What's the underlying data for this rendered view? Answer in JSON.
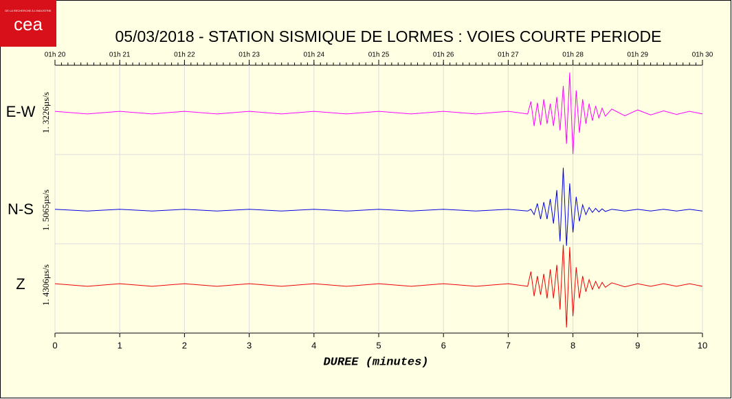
{
  "logo": "cea",
  "logo_tagline": "DE LA RECHERCHE À L'INDUSTRIE",
  "chart_data": {
    "type": "seismogram",
    "title": "05/03/2018  -  STATION SISMIQUE DE LORMES : VOIES COURTE PERIODE",
    "xlabel": "DUREE (minutes)",
    "xlim": [
      0,
      10
    ],
    "xticks": [
      0,
      1,
      2,
      3,
      4,
      5,
      6,
      7,
      8,
      9,
      10
    ],
    "top_ticks": [
      "01h 20",
      "01h 21",
      "01h 22",
      "01h 23",
      "01h 24",
      "01h 25",
      "01h 26",
      "01h 27",
      "01h 28",
      "01h 29",
      "01h 30"
    ],
    "ylim": [
      -1,
      1
    ],
    "grid": true,
    "x": [
      0,
      0.5,
      1,
      1.5,
      2,
      2.5,
      3,
      3.5,
      4,
      4.5,
      5,
      5.5,
      6,
      6.5,
      7,
      7.3,
      7.35,
      7.4,
      7.45,
      7.5,
      7.55,
      7.6,
      7.65,
      7.7,
      7.75,
      7.8,
      7.85,
      7.9,
      7.95,
      8,
      8.05,
      8.1,
      8.15,
      8.2,
      8.25,
      8.3,
      8.35,
      8.4,
      8.45,
      8.5,
      8.6,
      8.8,
      9,
      9.2,
      9.4,
      9.6,
      9.8,
      10
    ],
    "series": [
      {
        "name": "E-W",
        "scale_label": "1. 3226µs/s",
        "color": "#ff00ff",
        "values": [
          0.03,
          -0.03,
          0.03,
          -0.03,
          0.03,
          -0.03,
          0.03,
          -0.03,
          0.03,
          -0.03,
          0.03,
          -0.03,
          0.03,
          -0.03,
          0.03,
          -0.03,
          0.25,
          -0.3,
          0.22,
          -0.28,
          0.3,
          -0.25,
          0.2,
          -0.3,
          0.35,
          -0.4,
          0.6,
          -0.7,
          0.9,
          -0.93,
          0.5,
          -0.45,
          0.3,
          -0.25,
          0.2,
          -0.18,
          0.15,
          -0.12,
          0.1,
          -0.08,
          0.08,
          -0.07,
          0.06,
          -0.05,
          0.04,
          -0.04,
          0.03,
          -0.03
        ]
      },
      {
        "name": "N-S",
        "scale_label": "1. 5065µs/s",
        "color": "#0000dd",
        "values": [
          0.02,
          -0.02,
          0.02,
          -0.02,
          0.02,
          -0.02,
          0.02,
          -0.02,
          0.02,
          -0.02,
          0.02,
          -0.02,
          0.02,
          -0.02,
          0.02,
          -0.02,
          0.02,
          -0.1,
          0.15,
          -0.2,
          0.18,
          -0.2,
          0.25,
          -0.3,
          0.45,
          -0.7,
          0.95,
          -0.8,
          0.6,
          -0.5,
          0.3,
          -0.25,
          0.12,
          -0.1,
          0.06,
          -0.05,
          0.04,
          -0.04,
          0.03,
          -0.03,
          0.02,
          -0.02,
          0.02,
          -0.02,
          0.02,
          -0.02,
          0.02,
          -0.02
        ]
      },
      {
        "name": "Z",
        "scale_label": "1. 4306µs/s",
        "color": "#ee0000",
        "values": [
          0.03,
          -0.03,
          0.03,
          -0.03,
          0.03,
          -0.03,
          0.03,
          -0.03,
          0.03,
          -0.03,
          0.03,
          -0.03,
          0.03,
          -0.03,
          0.03,
          -0.03,
          0.3,
          -0.25,
          0.2,
          -0.22,
          0.25,
          -0.3,
          0.35,
          -0.3,
          0.45,
          -0.55,
          0.9,
          -0.95,
          0.85,
          -0.7,
          0.4,
          -0.3,
          0.2,
          -0.15,
          0.12,
          -0.1,
          0.08,
          -0.08,
          0.06,
          -0.05,
          0.05,
          -0.04,
          0.03,
          -0.03,
          0.03,
          -0.03,
          0.03,
          -0.03
        ]
      }
    ]
  }
}
